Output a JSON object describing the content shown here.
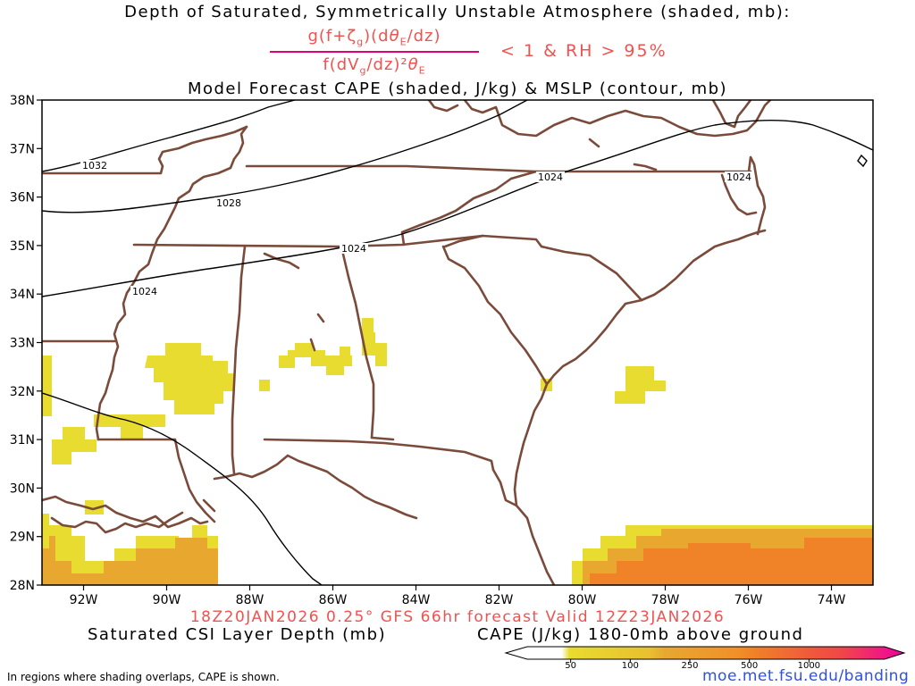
{
  "header": {
    "title_line1": "Depth of Saturated, Symmetrically Unstable Atmosphere (shaded, mb):",
    "fraction_numerator": "g(f+ζg)(dθE/dz)",
    "fraction_denominator": "f(dVg/dz)²θE",
    "condition": "< 1 & RH > 95%",
    "title_line3": "Model Forecast CAPE (shaded, J/kg) & MSLP (contour, mb)"
  },
  "axes": {
    "lat_labels": [
      "38N",
      "37N",
      "36N",
      "35N",
      "34N",
      "33N",
      "32N",
      "31N",
      "30N",
      "29N",
      "28N"
    ],
    "lat_values": [
      38,
      37,
      36,
      35,
      34,
      33,
      32,
      31,
      30,
      29,
      28
    ],
    "lon_labels": [
      "92W",
      "90W",
      "88W",
      "86W",
      "84W",
      "82W",
      "80W",
      "78W",
      "76W",
      "74W"
    ],
    "lon_values": [
      -92,
      -90,
      -88,
      -86,
      -84,
      -82,
      -80,
      -78,
      -76,
      -74
    ],
    "lat_range": [
      28,
      38
    ],
    "lon_range": [
      -93,
      -73
    ]
  },
  "isobars": [
    {
      "label": "1032",
      "value": 1032
    },
    {
      "label": "1028",
      "value": 1028
    },
    {
      "label": "1024",
      "value": 1024
    }
  ],
  "footer": {
    "run_info": "18Z20JAN2026 0.25° GFS 66hr forecast Valid 12Z23JAN2026",
    "csi_label": "Saturated CSI Layer Depth (mb)",
    "cape_label": "CAPE (J/kg) 180-0mb above ground",
    "note": "In regions where shading overlaps, CAPE is shown.",
    "site": "moe.met.fsu.edu/banding"
  },
  "colorbar": {
    "ticks": [
      "50",
      "100",
      "250",
      "500",
      "1000"
    ],
    "colors": [
      "#ffffff",
      "#e8dc30",
      "#e8a830",
      "#f08228",
      "#f04848",
      "#f000a0"
    ]
  },
  "colors": {
    "state_borders": "#7a4a3a",
    "isobars": "#000000",
    "title_accent": "#ef5350",
    "link": "#3050e0"
  }
}
